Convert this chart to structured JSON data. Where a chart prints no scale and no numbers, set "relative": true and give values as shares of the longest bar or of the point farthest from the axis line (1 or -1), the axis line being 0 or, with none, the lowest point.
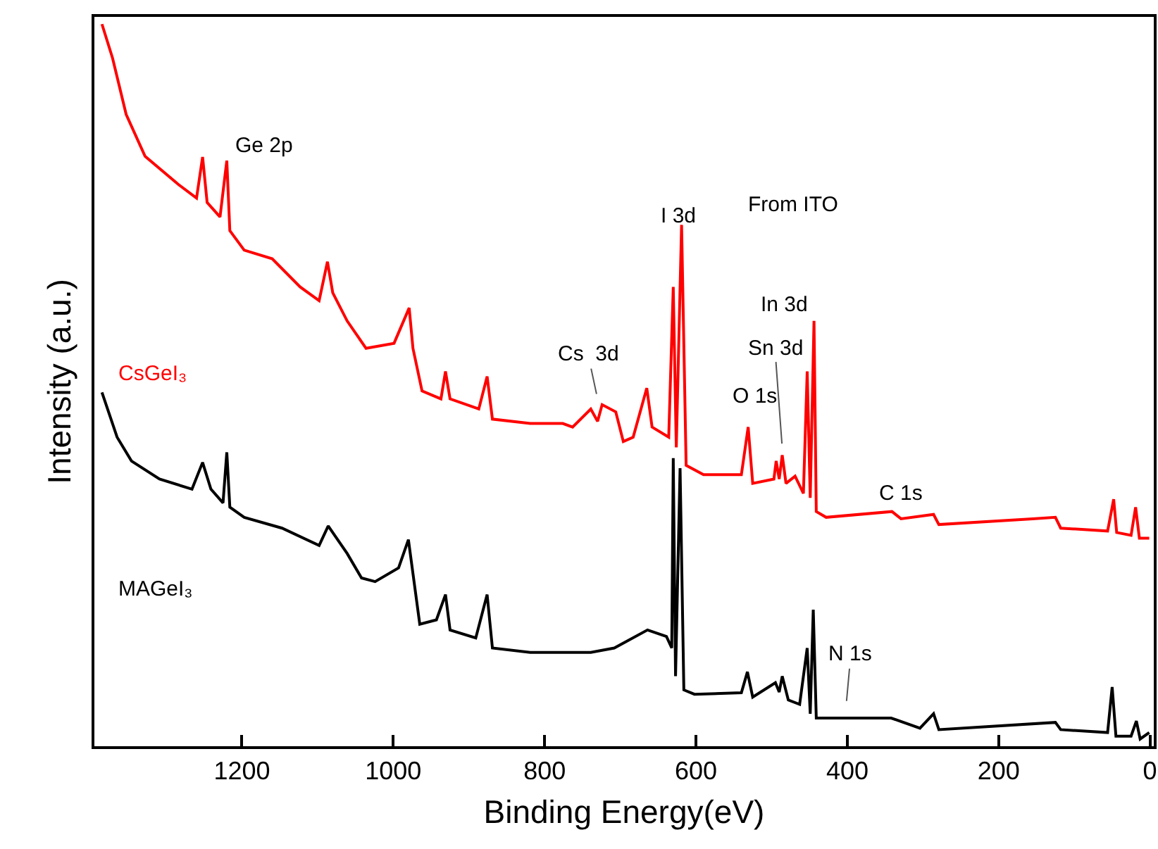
{
  "chart_data": {
    "type": "line",
    "xlabel": "Binding Energy(eV)",
    "ylabel": "Intensity (a.u.)",
    "relative": true,
    "xlim": [
      1395,
      -5
    ],
    "xticks": [
      1200,
      1000,
      800,
      600,
      400,
      200,
      0
    ],
    "grid": false,
    "legend": false,
    "series": [
      {
        "name": "CsGeI₃",
        "color": "#ff0000",
        "x": [
          1385,
          1371,
          1353,
          1328,
          1284,
          1260,
          1252,
          1246,
          1229,
          1220,
          1216,
          1197,
          1160,
          1123,
          1098,
          1087,
          1080,
          1061,
          1036,
          999,
          979,
          974,
          962,
          937,
          931,
          925,
          887,
          876,
          869,
          819,
          776,
          763,
          739,
          730,
          724,
          706,
          696,
          683,
          665,
          658,
          636,
          630,
          626,
          619,
          613,
          590,
          540,
          531,
          525,
          497,
          494,
          490,
          486,
          481,
          469,
          458,
          453,
          449,
          444,
          441,
          428,
          341,
          329,
          286,
          279,
          155,
          125,
          118,
          56,
          48,
          44,
          25,
          19,
          14,
          1
        ],
        "values": [
          1.0,
          0.953,
          0.875,
          0.817,
          0.778,
          0.759,
          0.816,
          0.753,
          0.733,
          0.811,
          0.714,
          0.687,
          0.675,
          0.636,
          0.617,
          0.671,
          0.628,
          0.589,
          0.551,
          0.558,
          0.607,
          0.551,
          0.492,
          0.481,
          0.519,
          0.481,
          0.467,
          0.512,
          0.453,
          0.447,
          0.447,
          0.442,
          0.467,
          0.45,
          0.473,
          0.463,
          0.422,
          0.428,
          0.496,
          0.442,
          0.428,
          0.636,
          0.414,
          0.722,
          0.389,
          0.376,
          0.376,
          0.442,
          0.364,
          0.37,
          0.395,
          0.37,
          0.403,
          0.364,
          0.374,
          0.35,
          0.519,
          0.344,
          0.589,
          0.325,
          0.317,
          0.325,
          0.315,
          0.321,
          0.307,
          0.315,
          0.317,
          0.302,
          0.298,
          0.342,
          0.296,
          0.292,
          0.331,
          0.288,
          0.288
        ]
      },
      {
        "name": "MAGeI₃",
        "color": "#000000",
        "x": [
          1385,
          1365,
          1346,
          1309,
          1266,
          1252,
          1241,
          1225,
          1220,
          1216,
          1197,
          1147,
          1098,
          1086,
          1061,
          1042,
          1024,
          993,
          980,
          974,
          965,
          943,
          931,
          925,
          891,
          876,
          869,
          819,
          739,
          708,
          664,
          639,
          632,
          630,
          627,
          621,
          616,
          602,
          540,
          532,
          525,
          495,
          490,
          486,
          478,
          463,
          453,
          449,
          445,
          441,
          404,
          342,
          304,
          286,
          279,
          125,
          118,
          56,
          50,
          45,
          25,
          18,
          13,
          1
        ],
        "values": [
          0.49,
          0.428,
          0.395,
          0.37,
          0.356,
          0.393,
          0.356,
          0.337,
          0.407,
          0.331,
          0.317,
          0.302,
          0.278,
          0.305,
          0.267,
          0.233,
          0.228,
          0.247,
          0.286,
          0.239,
          0.169,
          0.175,
          0.21,
          0.161,
          0.15,
          0.21,
          0.136,
          0.13,
          0.13,
          0.136,
          0.161,
          0.152,
          0.136,
          0.399,
          0.097,
          0.385,
          0.078,
          0.072,
          0.074,
          0.103,
          0.068,
          0.088,
          0.075,
          0.097,
          0.064,
          0.058,
          0.136,
          0.045,
          0.189,
          0.039,
          0.039,
          0.039,
          0.025,
          0.045,
          0.023,
          0.033,
          0.023,
          0.019,
          0.082,
          0.014,
          0.014,
          0.035,
          0.01,
          0.019
        ]
      }
    ],
    "annotations": [
      "Ge 2p",
      "I 3d",
      "From ITO",
      "In 3d",
      "Sn 3d",
      "O 1s",
      "Cs  3d",
      "C 1s",
      "N 1s"
    ]
  }
}
